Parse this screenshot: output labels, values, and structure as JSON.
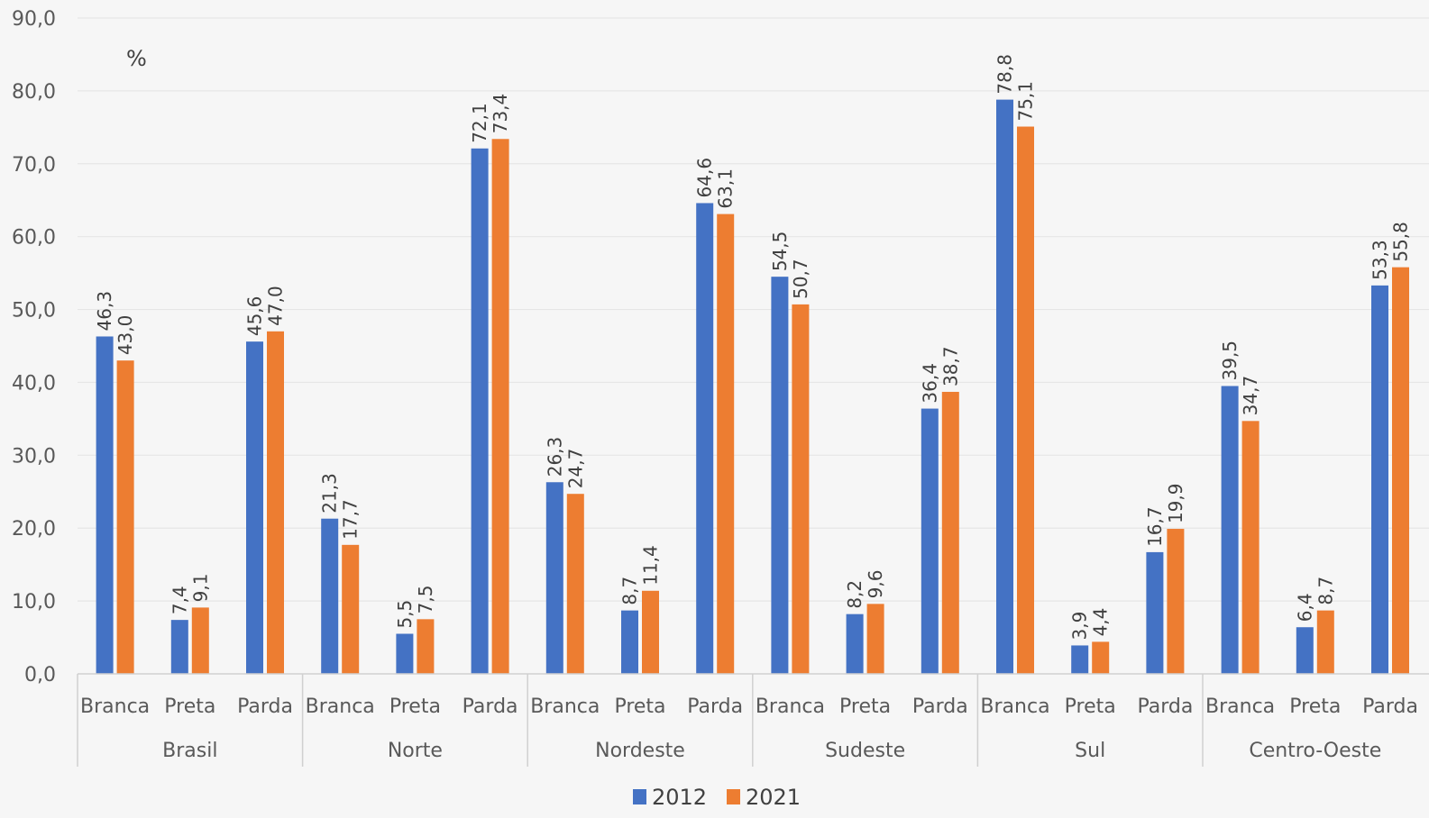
{
  "chart_data": {
    "type": "bar",
    "unit_label": "%",
    "ylim": [
      0,
      90
    ],
    "yticks": [
      "0,0",
      "10,0",
      "20,0",
      "30,0",
      "40,0",
      "50,0",
      "60,0",
      "70,0",
      "80,0",
      "90,0"
    ],
    "grid": true,
    "legend_position": "bottom",
    "groups": [
      {
        "name": "Brasil",
        "categories": [
          "Branca",
          "Preta",
          "Parda"
        ]
      },
      {
        "name": "Norte",
        "categories": [
          "Branca",
          "Preta",
          "Parda"
        ]
      },
      {
        "name": "Nordeste",
        "categories": [
          "Branca",
          "Preta",
          "Parda"
        ]
      },
      {
        "name": "Sudeste",
        "categories": [
          "Branca",
          "Preta",
          "Parda"
        ]
      },
      {
        "name": "Sul",
        "categories": [
          "Branca",
          "Preta",
          "Parda"
        ]
      },
      {
        "name": "Centro-Oeste",
        "categories": [
          "Branca",
          "Preta",
          "Parda"
        ]
      }
    ],
    "series": [
      {
        "name": "2012",
        "color": "#4472c4",
        "values": [
          46.3,
          7.4,
          45.6,
          21.3,
          5.5,
          72.1,
          26.3,
          8.7,
          64.6,
          54.5,
          8.2,
          36.4,
          78.8,
          3.9,
          16.7,
          39.5,
          6.4,
          53.3
        ],
        "labels": [
          "46,3",
          "7,4",
          "45,6",
          "21,3",
          "5,5",
          "72,1",
          "26,3",
          "8,7",
          "64,6",
          "54,5",
          "8,2",
          "36,4",
          "78,8",
          "3,9",
          "16,7",
          "39,5",
          "6,4",
          "53,3"
        ]
      },
      {
        "name": "2021",
        "color": "#ed7d31",
        "values": [
          43.0,
          9.1,
          47.0,
          17.7,
          7.5,
          73.4,
          24.7,
          11.4,
          63.1,
          50.7,
          9.6,
          38.7,
          75.1,
          4.4,
          19.9,
          34.7,
          8.7,
          55.8
        ],
        "labels": [
          "43,0",
          "9,1",
          "47,0",
          "17,7",
          "7,5",
          "73,4",
          "24,7",
          "11,4",
          "63,1",
          "50,7",
          "9,6",
          "38,7",
          "75,1",
          "4,4",
          "19,9",
          "34,7",
          "8,7",
          "55,8"
        ]
      }
    ]
  }
}
